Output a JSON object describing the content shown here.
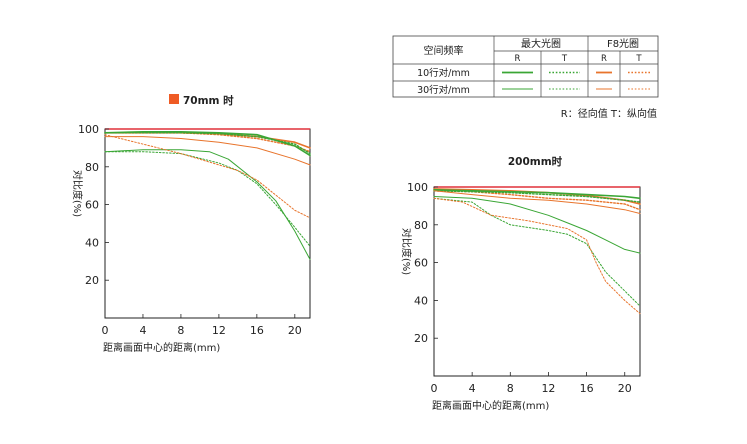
{
  "legend": {
    "header_row1": [
      "空间频率",
      "最大光圈",
      "F8光圈"
    ],
    "header_row2": [
      "R",
      "T",
      "R",
      "T"
    ],
    "row_labels": [
      "10行对/mm",
      "30行对/mm"
    ],
    "footnote": "R：径向值   T：纵向值"
  },
  "colors": {
    "max_aperture": "#3aa635",
    "f8_aperture": "#e8742c",
    "reference": "#e0303a",
    "axis": "#222222",
    "text": "#222222"
  },
  "chart_data": [
    {
      "type": "line",
      "title": "70mm 时",
      "title_marker": "square",
      "title_marker_color": "#ef5b25",
      "xlabel": "距离画面中心的距离(mm)",
      "ylabel": "对比度(%)",
      "xlim": [
        0,
        21.6
      ],
      "ylim": [
        0,
        100
      ],
      "xticks": [
        0,
        4,
        8,
        12,
        16,
        20
      ],
      "yticks": [
        20,
        40,
        60,
        80,
        100
      ],
      "grid": false,
      "series": [
        {
          "aperture": "F8",
          "freq": "10",
          "dir": "R",
          "dash": "solid",
          "width": 1.6,
          "color": "#e8742c",
          "x": [
            0,
            4,
            8,
            12,
            16,
            20,
            21.6
          ],
          "y": [
            98,
            98,
            98,
            97.5,
            96,
            93,
            90
          ]
        },
        {
          "aperture": "F8",
          "freq": "10",
          "dir": "T",
          "dash": "dot",
          "width": 1.4,
          "color": "#e8742c",
          "x": [
            0,
            4,
            8,
            12,
            16,
            20,
            21.6
          ],
          "y": [
            98,
            98,
            98,
            97,
            95,
            91,
            88
          ]
        },
        {
          "aperture": "max",
          "freq": "10",
          "dir": "R",
          "dash": "solid",
          "width": 1.6,
          "color": "#3aa635",
          "x": [
            0,
            4,
            8,
            12,
            16,
            20,
            21.6
          ],
          "y": [
            98,
            98.5,
            98.5,
            98,
            97,
            91,
            86
          ]
        },
        {
          "aperture": "max",
          "freq": "10",
          "dir": "T",
          "dash": "dot",
          "width": 1.4,
          "color": "#3aa635",
          "x": [
            0,
            4,
            8,
            12,
            16,
            20,
            21.6
          ],
          "y": [
            98,
            98,
            98,
            97.5,
            96,
            92,
            87
          ]
        },
        {
          "aperture": "max",
          "freq": "30",
          "dir": "R",
          "dash": "solid",
          "width": 1.0,
          "color": "#3aa635",
          "x": [
            0,
            4,
            8,
            11,
            13,
            16,
            18,
            20,
            21.6
          ],
          "y": [
            88,
            89,
            89,
            88,
            84,
            72,
            62,
            46,
            31
          ]
        },
        {
          "aperture": "max",
          "freq": "30",
          "dir": "T",
          "dash": "dot",
          "width": 1.0,
          "color": "#3aa635",
          "x": [
            0,
            4,
            8,
            12,
            14,
            16,
            18,
            20,
            21.6
          ],
          "y": [
            88,
            88,
            87,
            82,
            78,
            71,
            60,
            48,
            38
          ]
        },
        {
          "aperture": "F8",
          "freq": "30",
          "dir": "R",
          "dash": "solid",
          "width": 1.0,
          "color": "#e8742c",
          "x": [
            0,
            4,
            8,
            12,
            16,
            20,
            21.6
          ],
          "y": [
            96,
            96,
            95,
            93,
            90,
            84,
            81
          ]
        },
        {
          "aperture": "F8",
          "freq": "30",
          "dir": "T",
          "dash": "dot",
          "width": 1.0,
          "color": "#e8742c",
          "x": [
            0,
            4,
            8,
            12,
            14,
            16,
            18,
            20,
            21.6
          ],
          "y": [
            97,
            92,
            87,
            81,
            78,
            73,
            65,
            57,
            53
          ]
        }
      ]
    },
    {
      "type": "line",
      "title": "200mm时",
      "xlabel": "距离画面中心的距离(mm)",
      "ylabel": "对比度(%)",
      "xlim": [
        0,
        21.6
      ],
      "ylim": [
        0,
        100
      ],
      "xticks": [
        0,
        4,
        8,
        12,
        16,
        20
      ],
      "yticks": [
        20,
        40,
        60,
        80,
        100
      ],
      "grid": false,
      "series": [
        {
          "aperture": "F8",
          "freq": "10",
          "dir": "R",
          "dash": "solid",
          "width": 1.6,
          "color": "#e8742c",
          "x": [
            0,
            4,
            8,
            12,
            16,
            20,
            21.6
          ],
          "y": [
            99,
            98.5,
            98,
            97,
            95.5,
            93,
            91
          ]
        },
        {
          "aperture": "F8",
          "freq": "10",
          "dir": "T",
          "dash": "dot",
          "width": 1.4,
          "color": "#e8742c",
          "x": [
            0,
            4,
            8,
            12,
            16,
            20,
            21.6
          ],
          "y": [
            98,
            97.5,
            96,
            94,
            93,
            91,
            88
          ]
        },
        {
          "aperture": "max",
          "freq": "10",
          "dir": "R",
          "dash": "solid",
          "width": 1.6,
          "color": "#3aa635",
          "x": [
            0,
            4,
            8,
            12,
            16,
            20,
            21.6
          ],
          "y": [
            98.5,
            98,
            97.5,
            97,
            96,
            95,
            94
          ]
        },
        {
          "aperture": "max",
          "freq": "10",
          "dir": "T",
          "dash": "dot",
          "width": 1.4,
          "color": "#3aa635",
          "x": [
            0,
            4,
            8,
            12,
            16,
            20,
            21.6
          ],
          "y": [
            98,
            97.5,
            97,
            96,
            95,
            93,
            92
          ]
        },
        {
          "aperture": "max",
          "freq": "30",
          "dir": "R",
          "dash": "solid",
          "width": 1.0,
          "color": "#3aa635",
          "x": [
            0,
            4,
            8,
            12,
            14,
            16,
            18,
            20,
            21.6
          ],
          "y": [
            95,
            94,
            91,
            85,
            81,
            77,
            72,
            67,
            65
          ]
        },
        {
          "aperture": "max",
          "freq": "30",
          "dir": "T",
          "dash": "dot",
          "width": 1.0,
          "color": "#3aa635",
          "x": [
            0,
            4,
            6,
            8,
            12,
            14,
            16,
            18,
            20,
            21.6
          ],
          "y": [
            94,
            92,
            85,
            80,
            77,
            75,
            70,
            55,
            45,
            37
          ]
        },
        {
          "aperture": "F8",
          "freq": "30",
          "dir": "R",
          "dash": "solid",
          "width": 1.0,
          "color": "#e8742c",
          "x": [
            0,
            4,
            8,
            12,
            16,
            20,
            21.6
          ],
          "y": [
            98,
            96,
            94,
            93,
            91,
            88,
            86
          ]
        },
        {
          "aperture": "F8",
          "freq": "30",
          "dir": "T",
          "dash": "dot",
          "width": 1.0,
          "color": "#e8742c",
          "x": [
            0,
            3,
            6,
            10,
            14,
            16,
            17,
            18,
            20,
            21.6
          ],
          "y": [
            94,
            92,
            85,
            82,
            78,
            72,
            60,
            50,
            40,
            33
          ]
        }
      ]
    }
  ]
}
